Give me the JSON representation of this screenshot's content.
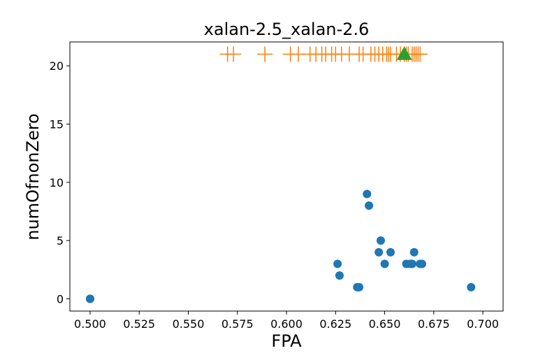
{
  "chart_data": {
    "type": "scatter",
    "title": "xalan-2.5_xalan-2.6",
    "xlabel": "FPA",
    "ylabel": "numOfnonZero",
    "xlim": [
      0.4897,
      0.7103
    ],
    "ylim": [
      -1.05,
      22.05
    ],
    "xticks": [
      0.5,
      0.525,
      0.55,
      0.575,
      0.6,
      0.625,
      0.65,
      0.675,
      0.7
    ],
    "xtick_labels": [
      "0.500",
      "0.525",
      "0.550",
      "0.575",
      "0.600",
      "0.625",
      "0.650",
      "0.675",
      "0.700"
    ],
    "yticks": [
      0,
      5,
      10,
      15,
      20
    ],
    "ytick_labels": [
      "0",
      "5",
      "10",
      "15",
      "20"
    ],
    "grid": false,
    "legend": "none",
    "series": [
      {
        "marker": "circle",
        "color": "#1f77b4",
        "points": [
          [
            0.5,
            0
          ],
          [
            0.5,
            0
          ],
          [
            0.5,
            0
          ],
          [
            0.626,
            3
          ],
          [
            0.627,
            2
          ],
          [
            0.636,
            1
          ],
          [
            0.637,
            1
          ],
          [
            0.641,
            9
          ],
          [
            0.642,
            8
          ],
          [
            0.647,
            4
          ],
          [
            0.648,
            5
          ],
          [
            0.65,
            3
          ],
          [
            0.653,
            4
          ],
          [
            0.661,
            3
          ],
          [
            0.663,
            3
          ],
          [
            0.664,
            3
          ],
          [
            0.665,
            4
          ],
          [
            0.668,
            3
          ],
          [
            0.669,
            3
          ],
          [
            0.694,
            1
          ]
        ]
      },
      {
        "marker": "plus",
        "color": "#ff7f0e",
        "y": 21,
        "x": [
          0.57,
          0.573,
          0.589,
          0.602,
          0.606,
          0.612,
          0.615,
          0.618,
          0.62,
          0.623,
          0.625,
          0.628,
          0.632,
          0.637,
          0.639,
          0.643,
          0.645,
          0.647,
          0.649,
          0.651,
          0.652,
          0.653,
          0.656,
          0.658,
          0.66,
          0.661,
          0.662,
          0.664,
          0.665,
          0.666,
          0.667,
          0.668
        ]
      },
      {
        "marker": "triangle",
        "color": "#2ca02c",
        "points": [
          [
            0.66,
            21
          ]
        ]
      }
    ]
  }
}
